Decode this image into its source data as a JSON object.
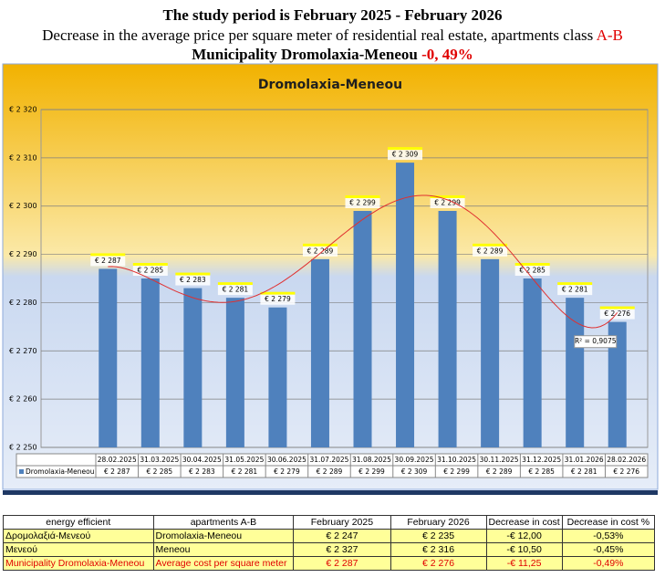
{
  "header": {
    "line1": "The study period is February 2025 - February 2026",
    "line2": "Decrease in the average price per square meter of residential real estate, apartments class",
    "line2_highlight": "A-B",
    "line3": "Municipality Dromolaxia-Meneou",
    "line3_highlight": "-0, 49%"
  },
  "chart_data": {
    "type": "bar",
    "title": "Dromolaxia-Meneou",
    "categories": [
      "28.02.2025",
      "31.03.2025",
      "30.04.2025",
      "31.05.2025",
      "30.06.2025",
      "31.07.2025",
      "31.08.2025",
      "30.09.2025",
      "31.10.2025",
      "30.11.2025",
      "31.12.2025",
      "31.01.2026",
      "28.02.2026"
    ],
    "series": [
      {
        "name": "Dromolaxia-Meneou",
        "color": "#4f81bd",
        "values": [
          2287,
          2285,
          2283,
          2281,
          2279,
          2289,
          2299,
          2309,
          2299,
          2289,
          2285,
          2281,
          2276
        ],
        "value_labels": [
          "€ 2 287",
          "€ 2 285",
          "€ 2 283",
          "€ 2 281",
          "€ 2 279",
          "€ 2 289",
          "€ 2 299",
          "€ 2 309",
          "€ 2 299",
          "€ 2 289",
          "€ 2 285",
          "€ 2 281",
          "€ 2 276"
        ]
      }
    ],
    "ylim": [
      2250,
      2320
    ],
    "yticks": [
      {
        "value": 2250,
        "label": "€ 2 250"
      },
      {
        "value": 2260,
        "label": "€ 2 260"
      },
      {
        "value": 2270,
        "label": "€ 2 270"
      },
      {
        "value": 2280,
        "label": "€ 2 280"
      },
      {
        "value": 2290,
        "label": "€ 2 290"
      },
      {
        "value": 2300,
        "label": "€ 2 300"
      },
      {
        "value": 2310,
        "label": "€ 2 310"
      },
      {
        "value": 2320,
        "label": "€ 2 320"
      }
    ],
    "grid": true,
    "trendline": {
      "label": "R² = 0,9075",
      "color": "#e03030"
    }
  },
  "table": {
    "header": [
      "energy efficient",
      "apartments A-B",
      "February 2025",
      "February 2026",
      "Decrease in cost",
      "Decrease in cost  %"
    ],
    "rows": [
      [
        "Δρομολαξιά-Μενεού",
        "Dromolaxia-Meneou",
        "€ 2 247",
        "€ 2 235",
        "-€ 12,00",
        "-0,53%"
      ],
      [
        "Μενεού",
        "Meneou",
        "€ 2 327",
        "€ 2 316",
        "-€ 10,50",
        "-0,45%"
      ],
      [
        "Municipality Dromolaxia-Meneou",
        "Average cost per square meter",
        "€ 2 287",
        "€ 2 276",
        "-€ 11,25",
        "-0,49%"
      ]
    ]
  }
}
